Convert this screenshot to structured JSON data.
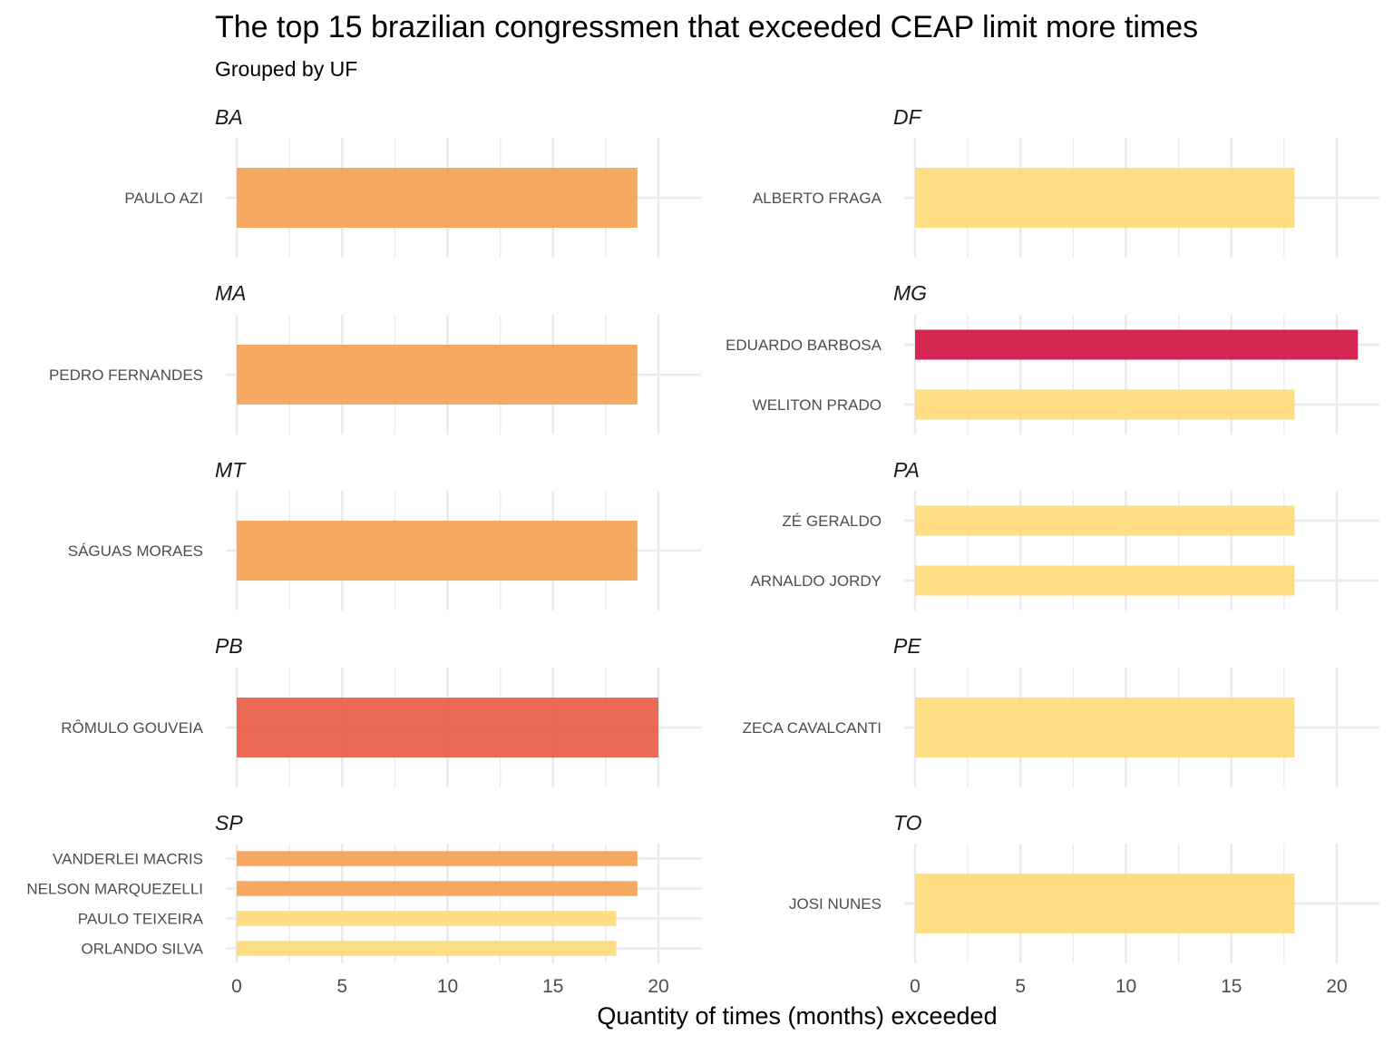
{
  "chart_data": {
    "type": "bar",
    "orientation": "horizontal",
    "title": "The top 15 brazilian congressmen that exceeded CEAP limit more times",
    "subtitle": "Grouped by UF",
    "xlabel": "Quantity of times (months) exceeded",
    "xlim": [
      0,
      22
    ],
    "xticks": [
      "0",
      "5",
      "10",
      "15",
      "20"
    ],
    "color_scale": {
      "18": "#fed976",
      "19": "#f5a04f",
      "20": "#e95a42",
      "21": "#d0103f"
    },
    "panels": [
      {
        "uf": "BA",
        "bars": [
          {
            "name": "PAULO AZI",
            "value": 19
          }
        ]
      },
      {
        "uf": "DF",
        "bars": [
          {
            "name": "ALBERTO FRAGA",
            "value": 18
          }
        ]
      },
      {
        "uf": "MA",
        "bars": [
          {
            "name": "PEDRO FERNANDES",
            "value": 19
          }
        ]
      },
      {
        "uf": "MG",
        "bars": [
          {
            "name": "EDUARDO BARBOSA",
            "value": 21
          },
          {
            "name": "WELITON PRADO",
            "value": 18
          }
        ]
      },
      {
        "uf": "MT",
        "bars": [
          {
            "name": "SÁGUAS MORAES",
            "value": 19
          }
        ]
      },
      {
        "uf": "PA",
        "bars": [
          {
            "name": "ZÉ GERALDO",
            "value": 18
          },
          {
            "name": "ARNALDO JORDY",
            "value": 18
          }
        ]
      },
      {
        "uf": "PB",
        "bars": [
          {
            "name": "RÔMULO GOUVEIA",
            "value": 20
          }
        ]
      },
      {
        "uf": "PE",
        "bars": [
          {
            "name": "ZECA CAVALCANTI",
            "value": 18
          }
        ]
      },
      {
        "uf": "SP",
        "bars": [
          {
            "name": "VANDERLEI MACRIS",
            "value": 19
          },
          {
            "name": "NELSON MARQUEZELLI",
            "value": 19
          },
          {
            "name": "PAULO TEIXEIRA",
            "value": 18
          },
          {
            "name": "ORLANDO SILVA",
            "value": 18
          }
        ]
      },
      {
        "uf": "TO",
        "bars": [
          {
            "name": "JOSI NUNES",
            "value": 18
          }
        ]
      }
    ]
  }
}
